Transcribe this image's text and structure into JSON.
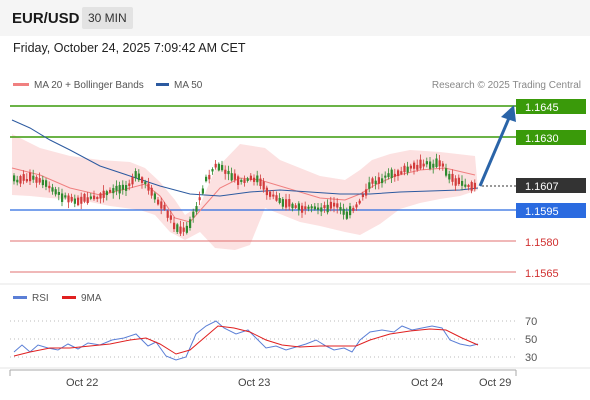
{
  "header": {
    "pair": "EUR/USD",
    "timeframe": "30 MIN"
  },
  "timestamp": "Friday, October 24, 2025 7:09:42 AM CET",
  "legend": {
    "ma20_label": "MA 20 + Bollinger Bands",
    "ma50_label": "MA 50",
    "credit": "Research © 2025 Trading Central"
  },
  "colors": {
    "ma20": "#f08080",
    "ma50": "#2c5aa0",
    "resistance": "#3a9a0a",
    "pivot": "#2b6be0",
    "support": "#e04848",
    "current": "#333333",
    "arrow": "#2a64a8",
    "candle_up": "#2f8a2f",
    "candle_down": "#d23b3b",
    "rsi": "#5b7fd6",
    "rsi_ma": "#e02020"
  },
  "levels": [
    {
      "label": "1.1645",
      "type": "resistance"
    },
    {
      "label": "1.1630",
      "type": "resistance"
    },
    {
      "label": "1.1607",
      "type": "current"
    },
    {
      "label": "1.1595",
      "type": "pivot"
    },
    {
      "label": "1.1580",
      "type": "support"
    },
    {
      "label": "1.1565",
      "type": "support"
    }
  ],
  "rsi": {
    "legend_rsi": "RSI",
    "legend_ma": "9MA",
    "ticks": [
      "70",
      "50",
      "30"
    ]
  },
  "xaxis": {
    "labels": [
      "Oct 22",
      "Oct 23",
      "Oct 24",
      "Oct 29"
    ]
  }
}
